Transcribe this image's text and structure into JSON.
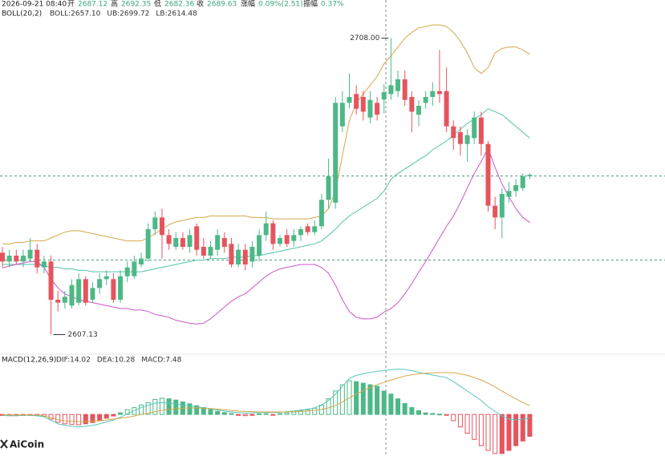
{
  "header": {
    "date": "2026-09-21 08:40",
    "open_label": "开",
    "open": "2687.12",
    "high_label": "高",
    "high": "2692.35",
    "low_label": "低",
    "low": "2682.36",
    "close_label": "收",
    "close": "2689.63",
    "change_label": "涨幅",
    "change": "0.09%(2.51)",
    "amplitude_label": "振幅",
    "amplitude": "0.37%"
  },
  "watermark": "AiCoin",
  "chart_data": [
    {
      "type": "candlestick",
      "indicator_label": "BOLL(20,2)",
      "ylim": [
        2601,
        2721
      ],
      "up_color": "#4db887",
      "down_color": "#e5545e",
      "max_label": "2708.00",
      "min_label": "2607.13",
      "hlines": [
        2661.1,
        2632.5
      ],
      "open": [
        2635,
        2632,
        2634,
        2632,
        2633,
        2636,
        2630,
        2632,
        2619,
        2618,
        2617,
        2618,
        2626,
        2619,
        2623,
        2626,
        2626,
        2619,
        2627,
        2627,
        2631,
        2633,
        2643,
        2647,
        2641,
        2637,
        2640,
        2637,
        2644,
        2637,
        2634,
        2636,
        2640,
        2638,
        2631,
        2636,
        2632,
        2634,
        2641,
        2645,
        2638,
        2641,
        2639,
        2641,
        2644,
        2642,
        2644,
        2653,
        2652,
        2678,
        2686,
        2689,
        2688,
        2681,
        2686,
        2687.12,
        2689,
        2690,
        2694,
        2688,
        2682,
        2686,
        2688,
        2690,
        2690,
        2678,
        2676,
        2672,
        2674,
        2681,
        2672,
        2651,
        2647,
        2654,
        2656,
        2657,
        2661
      ],
      "high": [
        2637,
        2636,
        2636,
        2636,
        2640,
        2638,
        2634,
        2634,
        2622,
        2622,
        2626,
        2628,
        2627,
        2625,
        2628,
        2629,
        2628,
        2629,
        2632,
        2634,
        2635,
        2645,
        2649,
        2650,
        2643,
        2642,
        2642,
        2643,
        2645,
        2640,
        2639,
        2643,
        2642,
        2640,
        2638,
        2638,
        2639,
        2643,
        2649,
        2646,
        2641,
        2643,
        2643,
        2644,
        2645,
        2646,
        2655,
        2667,
        2688,
        2690,
        2696,
        2692,
        2690,
        2690,
        2688,
        2692.35,
        2708,
        2697,
        2697,
        2690,
        2687,
        2690,
        2693,
        2704,
        2698,
        2680,
        2678,
        2677,
        2683,
        2683,
        2673,
        2654,
        2657,
        2659,
        2660,
        2662,
        2662
      ],
      "low": [
        2630,
        2630,
        2631,
        2630,
        2632,
        2628,
        2628,
        2607.13,
        2615,
        2616,
        2616,
        2617,
        2617,
        2618,
        2621,
        2624,
        2618,
        2618,
        2625,
        2626,
        2630,
        2632,
        2641,
        2633,
        2636,
        2636,
        2636,
        2635,
        2634,
        2633,
        2633,
        2634,
        2635,
        2630,
        2630,
        2629,
        2630,
        2632,
        2639,
        2636,
        2637,
        2637,
        2637,
        2639,
        2641,
        2641,
        2643,
        2650,
        2650,
        2676,
        2684,
        2682,
        2680,
        2679,
        2680,
        2682.36,
        2687,
        2688,
        2685,
        2676,
        2678,
        2684,
        2685,
        2686,
        2676,
        2670,
        2668,
        2666,
        2672,
        2668,
        2649,
        2643,
        2640,
        2652,
        2654,
        2656,
        2660
      ],
      "close": [
        2632,
        2634,
        2632,
        2634,
        2636,
        2630,
        2632,
        2619,
        2618,
        2620,
        2624,
        2626,
        2618,
        2623,
        2626,
        2627,
        2619,
        2627,
        2630,
        2632,
        2633,
        2643,
        2647,
        2641,
        2638,
        2640,
        2637,
        2641,
        2636,
        2634,
        2637,
        2641,
        2637,
        2631,
        2636,
        2631,
        2637,
        2641,
        2645,
        2638,
        2640,
        2638,
        2641,
        2643,
        2642,
        2644,
        2653,
        2661,
        2686,
        2686,
        2688,
        2684,
        2683,
        2687,
        2682,
        2689.63,
        2692,
        2694,
        2687,
        2683,
        2685,
        2688,
        2690,
        2689,
        2678,
        2674,
        2672,
        2675,
        2681,
        2672,
        2651,
        2647,
        2655,
        2656,
        2658,
        2661,
        2661.5
      ],
      "series": [
        {
          "name": "BOLL:2657.10",
          "color": "#4fc3a8",
          "values": [
            2631,
            2631,
            2631,
            2631,
            2631,
            2631,
            2630.5,
            2630,
            2630,
            2629.5,
            2629.5,
            2629,
            2629,
            2628.5,
            2628.5,
            2628.5,
            2628.5,
            2628.5,
            2628.5,
            2628.5,
            2628.5,
            2629,
            2629.5,
            2630,
            2630.5,
            2631,
            2631.5,
            2632,
            2632.5,
            2632.5,
            2633,
            2633,
            2633,
            2633.5,
            2633.5,
            2633.5,
            2634,
            2634,
            2634.5,
            2635,
            2635.5,
            2636,
            2636.5,
            2637,
            2637.5,
            2638,
            2639,
            2641,
            2643,
            2645.5,
            2647.5,
            2649,
            2650.5,
            2652,
            2653.5,
            2656,
            2660,
            2662,
            2663.5,
            2665,
            2666.6,
            2668,
            2670,
            2671.5,
            2673,
            2675,
            2677,
            2679,
            2680.5,
            2682,
            2684,
            2683,
            2682,
            2680,
            2678,
            2676,
            2674
          ]
        },
        {
          "name": "UB:2699.72",
          "color": "#d4a84a",
          "values": [
            2638,
            2638,
            2638.5,
            2638.5,
            2639,
            2639,
            2639,
            2640,
            2641,
            2642,
            2642.5,
            2642.5,
            2642,
            2641.5,
            2641,
            2640.5,
            2640,
            2639.5,
            2639,
            2639,
            2639,
            2640,
            2641.5,
            2643,
            2644.5,
            2645.5,
            2646,
            2646.5,
            2647,
            2647,
            2647.5,
            2647.5,
            2647.5,
            2647.5,
            2647.5,
            2647.5,
            2647,
            2647,
            2647,
            2646.5,
            2646.5,
            2646.5,
            2646.5,
            2646.5,
            2646.5,
            2647,
            2647.5,
            2650,
            2656,
            2668,
            2680,
            2686,
            2689,
            2692,
            2695,
            2699.3,
            2702,
            2705,
            2708,
            2710,
            2711.5,
            2712,
            2712.5,
            2712.5,
            2712,
            2710,
            2707,
            2703,
            2698,
            2696,
            2698,
            2703,
            2704.5,
            2705,
            2705,
            2704,
            2702.5
          ]
        },
        {
          "name": "LB:2614.48",
          "color": "#cc55cc",
          "values": [
            2629.8,
            2630.5,
            2631,
            2631.5,
            2632,
            2632,
            2630,
            2626,
            2623,
            2621,
            2620,
            2619,
            2618.5,
            2618,
            2617.5,
            2617,
            2616.5,
            2616,
            2616,
            2615.5,
            2615.5,
            2615,
            2614,
            2613.5,
            2613,
            2612,
            2611.5,
            2611,
            2610.7,
            2611,
            2612.5,
            2614.5,
            2616.5,
            2618.5,
            2620,
            2621,
            2623,
            2625,
            2627,
            2628.5,
            2629.5,
            2630,
            2630.5,
            2631,
            2631,
            2631,
            2630,
            2628,
            2624,
            2619,
            2615,
            2613,
            2612.5,
            2612.5,
            2613,
            2614.8,
            2616,
            2618,
            2621,
            2624.5,
            2628.4,
            2632,
            2636,
            2640,
            2644,
            2647.5,
            2652,
            2657,
            2662,
            2666,
            2670.6,
            2664,
            2658.4,
            2654,
            2650,
            2647,
            2645.3
          ]
        }
      ]
    },
    {
      "type": "macd",
      "indicator_label": "MACD(12,26,9)",
      "ylim": [
        -13.3,
        18.5
      ],
      "histogram": {
        "name": "MACD:7.48",
        "up_color": "#4db887",
        "down_color": "#e5545e",
        "values": [
          -0.3,
          -0.4,
          -0.4,
          -0.3,
          -0.3,
          -0.4,
          -0.6,
          -1.5,
          -2.5,
          -3.0,
          -3.2,
          -3.3,
          -3.0,
          -2.6,
          -2.0,
          -1.2,
          -0.5,
          0.5,
          1.5,
          2.2,
          3.0,
          3.8,
          4.8,
          5.2,
          5.0,
          4.6,
          4.0,
          3.4,
          2.8,
          2.2,
          1.6,
          1.0,
          0.6,
          0.3,
          -0.3,
          -0.4,
          -0.3,
          0.2,
          0.3,
          -0.2,
          0.3,
          0.5,
          0.8,
          1.2,
          1.5,
          2.0,
          3.0,
          5.0,
          7.5,
          9.5,
          10.8,
          10.5,
          10.0,
          9.5,
          9.0,
          7.48,
          6.5,
          5.0,
          3.5,
          2.2,
          1.2,
          0.5,
          0.3,
          0.1,
          -0.3,
          -2.0,
          -4.0,
          -6.0,
          -8.0,
          -10.0,
          -11.5,
          -12.5,
          -12.5,
          -11.5,
          -10.0,
          -8.5,
          -7.0
        ]
      },
      "series": [
        {
          "name": "DIF:14.02",
          "color": "#56c7bc",
          "values": [
            -0.3,
            -0.4,
            -0.4,
            -0.3,
            -0.3,
            -0.4,
            -0.8,
            -1.8,
            -3.0,
            -3.5,
            -3.8,
            -4.0,
            -3.8,
            -3.5,
            -3.0,
            -2.4,
            -1.8,
            -0.9,
            0.2,
            1.2,
            2.2,
            3.0,
            3.6,
            3.8,
            3.6,
            3.3,
            3.0,
            2.7,
            2.4,
            2.1,
            1.8,
            1.4,
            1.1,
            0.8,
            0.6,
            0.5,
            0.5,
            0.6,
            0.7,
            0.6,
            0.7,
            0.9,
            1.1,
            1.4,
            1.7,
            2.1,
            3.0,
            4.5,
            6.5,
            9.0,
            11.5,
            12.5,
            13.0,
            13.5,
            13.8,
            14.02,
            14.3,
            14.5,
            14.4,
            14.0,
            13.5,
            13.0,
            12.6,
            12.2,
            11.8,
            10.5,
            9.0,
            7.5,
            6.0,
            4.5,
            2.5,
            1.0,
            -0.5,
            -1.5,
            -1.8,
            -1.5,
            -1.2
          ]
        },
        {
          "name": "DEA:10.28",
          "color": "#d4a84a",
          "values": [
            -0.15,
            -0.2,
            -0.2,
            -0.15,
            -0.15,
            -0.2,
            -0.5,
            -1.0,
            -1.7,
            -2.0,
            -2.2,
            -2.3,
            -2.3,
            -2.2,
            -2.0,
            -1.8,
            -1.5,
            -1.2,
            -0.9,
            -0.5,
            0.0,
            0.4,
            0.9,
            1.3,
            1.6,
            1.8,
            2.0,
            2.1,
            2.1,
            2.0,
            1.9,
            1.7,
            1.5,
            1.3,
            1.1,
            1.0,
            0.9,
            0.8,
            0.8,
            0.8,
            0.8,
            0.8,
            0.9,
            1.0,
            1.1,
            1.3,
            1.6,
            2.1,
            2.9,
            4.0,
            5.3,
            6.5,
            7.6,
            8.6,
            9.5,
            10.28,
            11.0,
            11.7,
            12.3,
            12.7,
            13.0,
            13.2,
            13.3,
            13.4,
            13.4,
            13.3,
            13.0,
            12.5,
            11.8,
            11.0,
            10.0,
            8.8,
            7.5,
            6.2,
            5.0,
            3.8,
            2.8
          ]
        }
      ]
    }
  ]
}
